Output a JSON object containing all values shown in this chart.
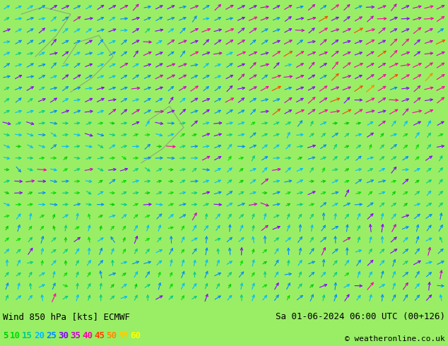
{
  "title_left": "Wind 850 hPa [kts] ECMWF",
  "title_right": "Sa 01-06-2024 06:00 UTC (00+126)",
  "copyright": "© weatheronline.co.uk",
  "legend_values": [
    5,
    10,
    15,
    20,
    25,
    30,
    35,
    40,
    45,
    50,
    55,
    60
  ],
  "legend_colors": [
    "#00cc00",
    "#00dd00",
    "#00cc88",
    "#00bbff",
    "#0088ff",
    "#8800ff",
    "#cc00cc",
    "#ff00aa",
    "#ff4400",
    "#ff8800",
    "#ffcc00",
    "#ffff00"
  ],
  "bg_color": "#99ee66",
  "map_bg": "#99ee66",
  "border_color": "#888888",
  "wind_arrow_colors_by_speed": {
    "5": "#00cc00",
    "10": "#00dd00",
    "15": "#00cc88",
    "20": "#00bbff",
    "25": "#0088ff",
    "30": "#8800ff",
    "35": "#cc00cc",
    "40": "#ff00aa",
    "45": "#ff4400",
    "50": "#ff8800",
    "55": "#ffcc00",
    "60": "#ffff00"
  },
  "bottom_bar_color": "#ffffff",
  "bottom_text_color": "#000000",
  "figsize": [
    6.34,
    4.9
  ],
  "dpi": 100
}
